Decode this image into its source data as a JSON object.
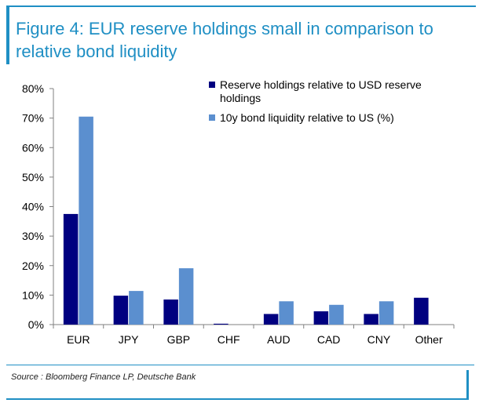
{
  "figure": {
    "title": "Figure 4: EUR reserve holdings small in comparison to relative bond liquidity",
    "source": "Source : Bloomberg Finance LP, Deutsche Bank",
    "accent_color": "#1f8fc4"
  },
  "chart_data": {
    "type": "bar",
    "title": "",
    "xlabel": "",
    "ylabel": "",
    "categories": [
      "EUR",
      "JPY",
      "GBP",
      "CHF",
      "AUD",
      "CAD",
      "CNY",
      "Other"
    ],
    "yticks": [
      "0%",
      "10%",
      "20%",
      "30%",
      "40%",
      "50%",
      "60%",
      "70%",
      "80%"
    ],
    "ylim": [
      0,
      80
    ],
    "grid": false,
    "legend_position": "top-right",
    "series": [
      {
        "name": "Reserve holdings relative to USD reserve holdings",
        "legend_lines": [
          "Reserve holdings relative to USD reserve",
          "holdings"
        ],
        "color": "#000080",
        "values": [
          37.5,
          9.8,
          8.5,
          0.3,
          3.6,
          4.5,
          3.6,
          9.1
        ]
      },
      {
        "name": "10y bond liquidity relative to US (%)",
        "legend_lines": [
          "10y bond liquidity relative to US (%)"
        ],
        "color": "#5b8fcf",
        "values": [
          70.5,
          11.4,
          19.1,
          null,
          7.9,
          6.7,
          7.9,
          null
        ]
      }
    ]
  }
}
